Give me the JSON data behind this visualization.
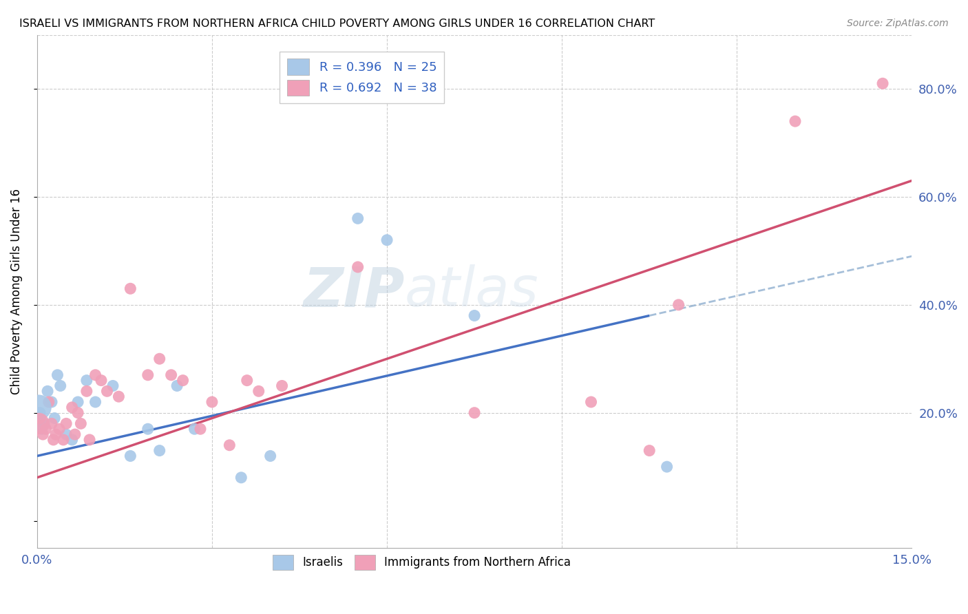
{
  "title": "ISRAELI VS IMMIGRANTS FROM NORTHERN AFRICA CHILD POVERTY AMONG GIRLS UNDER 16 CORRELATION CHART",
  "source": "Source: ZipAtlas.com",
  "ylabel": "Child Poverty Among Girls Under 16",
  "xlim": [
    0.0,
    15.0
  ],
  "ylim": [
    -5.0,
    90.0
  ],
  "yticks": [
    0,
    20,
    40,
    60,
    80
  ],
  "ytick_labels": [
    "",
    "20.0%",
    "40.0%",
    "60.0%",
    "80.0%"
  ],
  "xtick_labels": [
    "0.0%",
    "",
    "",
    "",
    "",
    "15.0%"
  ],
  "color_israeli": "#A8C8E8",
  "color_immigrant": "#F0A0B8",
  "color_trend_israeli": "#4472C4",
  "color_trend_immigrant": "#D05070",
  "color_dashed": "#90B0D0",
  "watermark": "ZIPAtlas",
  "israeli_x": [
    0.05,
    0.08,
    0.12,
    0.18,
    0.25,
    0.3,
    0.35,
    0.4,
    0.5,
    0.6,
    0.7,
    0.85,
    1.0,
    1.3,
    1.6,
    1.9,
    2.1,
    2.4,
    2.7,
    3.5,
    4.0,
    5.5,
    6.0,
    7.5,
    10.8
  ],
  "israeli_y": [
    20,
    17,
    18,
    24,
    22,
    19,
    27,
    25,
    16,
    15,
    22,
    26,
    22,
    25,
    12,
    17,
    13,
    25,
    17,
    8,
    12,
    56,
    52,
    38,
    10
  ],
  "immigrant_x": [
    0.05,
    0.1,
    0.15,
    0.2,
    0.25,
    0.28,
    0.32,
    0.38,
    0.45,
    0.5,
    0.6,
    0.65,
    0.7,
    0.75,
    0.85,
    0.9,
    1.0,
    1.1,
    1.2,
    1.4,
    1.6,
    1.9,
    2.1,
    2.3,
    2.5,
    2.8,
    3.0,
    3.3,
    3.6,
    3.8,
    4.2,
    5.5,
    7.5,
    9.5,
    10.5,
    11.0,
    13.0,
    14.5
  ],
  "immigrant_y": [
    19,
    16,
    17,
    22,
    18,
    15,
    16,
    17,
    15,
    18,
    21,
    16,
    20,
    18,
    24,
    15,
    27,
    26,
    24,
    23,
    43,
    27,
    30,
    27,
    26,
    17,
    22,
    14,
    26,
    24,
    25,
    47,
    20,
    22,
    13,
    40,
    74,
    81
  ],
  "large_israeli_x": [
    0.03
  ],
  "large_israeli_y": [
    21
  ],
  "large_immigrant_x": [
    0.03
  ],
  "large_immigrant_y": [
    18
  ],
  "trend_isr_x0": 0.0,
  "trend_isr_y0": 12.0,
  "trend_isr_x1": 10.5,
  "trend_isr_y1": 38.0,
  "trend_imm_x0": 0.0,
  "trend_imm_y0": 8.0,
  "trend_imm_x1": 15.0,
  "trend_imm_y1": 63.0,
  "dash_x0": 10.5,
  "dash_y0": 38.0,
  "dash_x1": 15.0,
  "dash_y1": 49.0
}
